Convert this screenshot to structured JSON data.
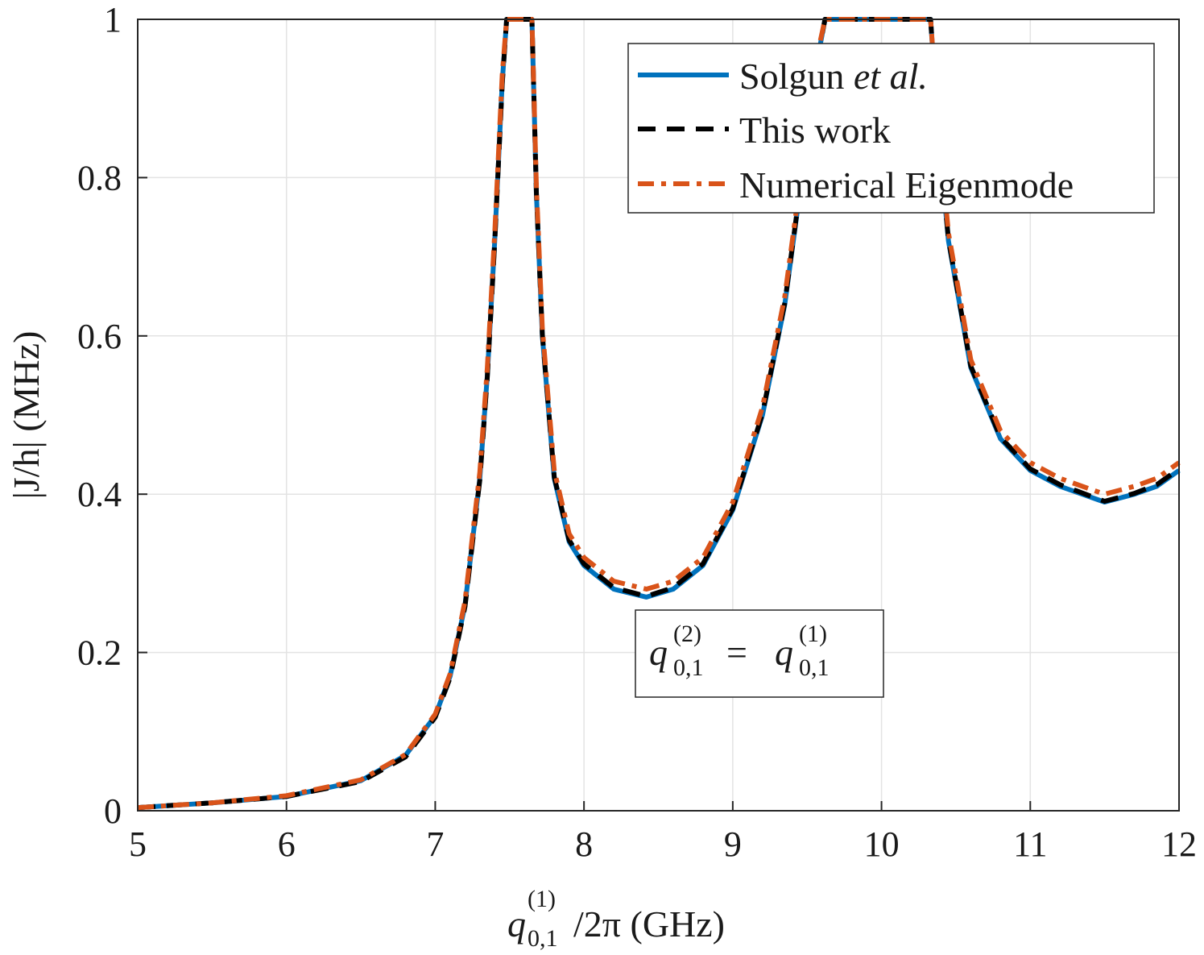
{
  "chart_data": {
    "type": "line",
    "xlabel": {
      "sym": "q",
      "sup": "(1)",
      "sub": "0,1",
      "rest": "/2π (GHz)"
    },
    "ylabel": "|J/h| (MHz)",
    "xlim": [
      5,
      12
    ],
    "ylim": [
      0,
      1
    ],
    "xticks": [
      5,
      6,
      7,
      8,
      9,
      10,
      11,
      12
    ],
    "yticks": [
      0,
      0.2,
      0.4,
      0.6,
      0.8,
      1
    ],
    "ytick_labels": [
      "0",
      "0.2",
      "0.4",
      "0.6",
      "0.8",
      "1"
    ],
    "grid": true,
    "legend_position": "top-right",
    "annotation": {
      "lhs_sym": "q",
      "lhs_sup": "(2)",
      "lhs_sub": "0,1",
      "eq": "=",
      "rhs_sym": "q",
      "rhs_sup": "(1)",
      "rhs_sub": "0,1"
    },
    "series": [
      {
        "name": "Solgun",
        "name_italic": "et al.",
        "color": "#0072BD",
        "style": "solid",
        "x": [
          5.0,
          5.5,
          6.0,
          6.5,
          6.8,
          7.0,
          7.1,
          7.2,
          7.3,
          7.35,
          7.4,
          7.45,
          7.48,
          7.65,
          7.68,
          7.72,
          7.8,
          7.9,
          8.0,
          8.2,
          8.42,
          8.6,
          8.8,
          9.0,
          9.2,
          9.35,
          9.45,
          9.55,
          9.62,
          10.33,
          10.38,
          10.45,
          10.6,
          10.8,
          11.0,
          11.2,
          11.5,
          11.7,
          11.85,
          12.0
        ],
        "y": [
          0.004,
          0.01,
          0.018,
          0.038,
          0.07,
          0.12,
          0.17,
          0.26,
          0.42,
          0.55,
          0.72,
          0.92,
          1.0,
          1.0,
          0.78,
          0.6,
          0.42,
          0.34,
          0.31,
          0.28,
          0.27,
          0.28,
          0.31,
          0.38,
          0.5,
          0.64,
          0.78,
          0.93,
          1.0,
          1.0,
          0.86,
          0.72,
          0.56,
          0.47,
          0.43,
          0.41,
          0.39,
          0.4,
          0.41,
          0.43
        ]
      },
      {
        "name": "This work",
        "color": "#000000",
        "style": "dashed",
        "x": [
          5.0,
          5.5,
          6.0,
          6.5,
          6.8,
          7.0,
          7.1,
          7.2,
          7.3,
          7.35,
          7.4,
          7.45,
          7.48,
          7.65,
          7.68,
          7.72,
          7.8,
          7.9,
          8.0,
          8.2,
          8.42,
          8.6,
          8.8,
          9.0,
          9.2,
          9.35,
          9.45,
          9.55,
          9.62,
          10.33,
          10.38,
          10.45,
          10.6,
          10.8,
          11.0,
          11.2,
          11.5,
          11.7,
          11.85,
          12.0
        ],
        "y": [
          0.004,
          0.01,
          0.018,
          0.037,
          0.068,
          0.118,
          0.168,
          0.258,
          0.418,
          0.548,
          0.718,
          0.918,
          1.0,
          1.0,
          0.782,
          0.602,
          0.422,
          0.342,
          0.312,
          0.282,
          0.271,
          0.282,
          0.312,
          0.382,
          0.502,
          0.642,
          0.782,
          0.932,
          1.0,
          1.0,
          0.862,
          0.722,
          0.562,
          0.472,
          0.432,
          0.412,
          0.391,
          0.401,
          0.412,
          0.432
        ]
      },
      {
        "name": "Numerical Eigenmode",
        "color": "#D95319",
        "style": "dashdot",
        "x": [
          5.0,
          5.5,
          6.0,
          6.5,
          6.8,
          7.0,
          7.1,
          7.2,
          7.3,
          7.35,
          7.4,
          7.45,
          7.48,
          7.65,
          7.68,
          7.72,
          7.8,
          7.9,
          8.0,
          8.2,
          8.42,
          8.6,
          8.8,
          9.0,
          9.2,
          9.35,
          9.45,
          9.55,
          9.62,
          10.33,
          10.38,
          10.45,
          10.6,
          10.8,
          11.0,
          11.2,
          11.5,
          11.7,
          11.85,
          12.0
        ],
        "y": [
          0.004,
          0.01,
          0.019,
          0.039,
          0.071,
          0.122,
          0.173,
          0.265,
          0.428,
          0.56,
          0.73,
          0.93,
          1.0,
          1.0,
          0.79,
          0.61,
          0.43,
          0.35,
          0.32,
          0.29,
          0.28,
          0.29,
          0.32,
          0.39,
          0.51,
          0.65,
          0.79,
          0.94,
          1.0,
          1.0,
          0.87,
          0.73,
          0.57,
          0.48,
          0.44,
          0.42,
          0.4,
          0.41,
          0.42,
          0.44
        ]
      }
    ]
  }
}
